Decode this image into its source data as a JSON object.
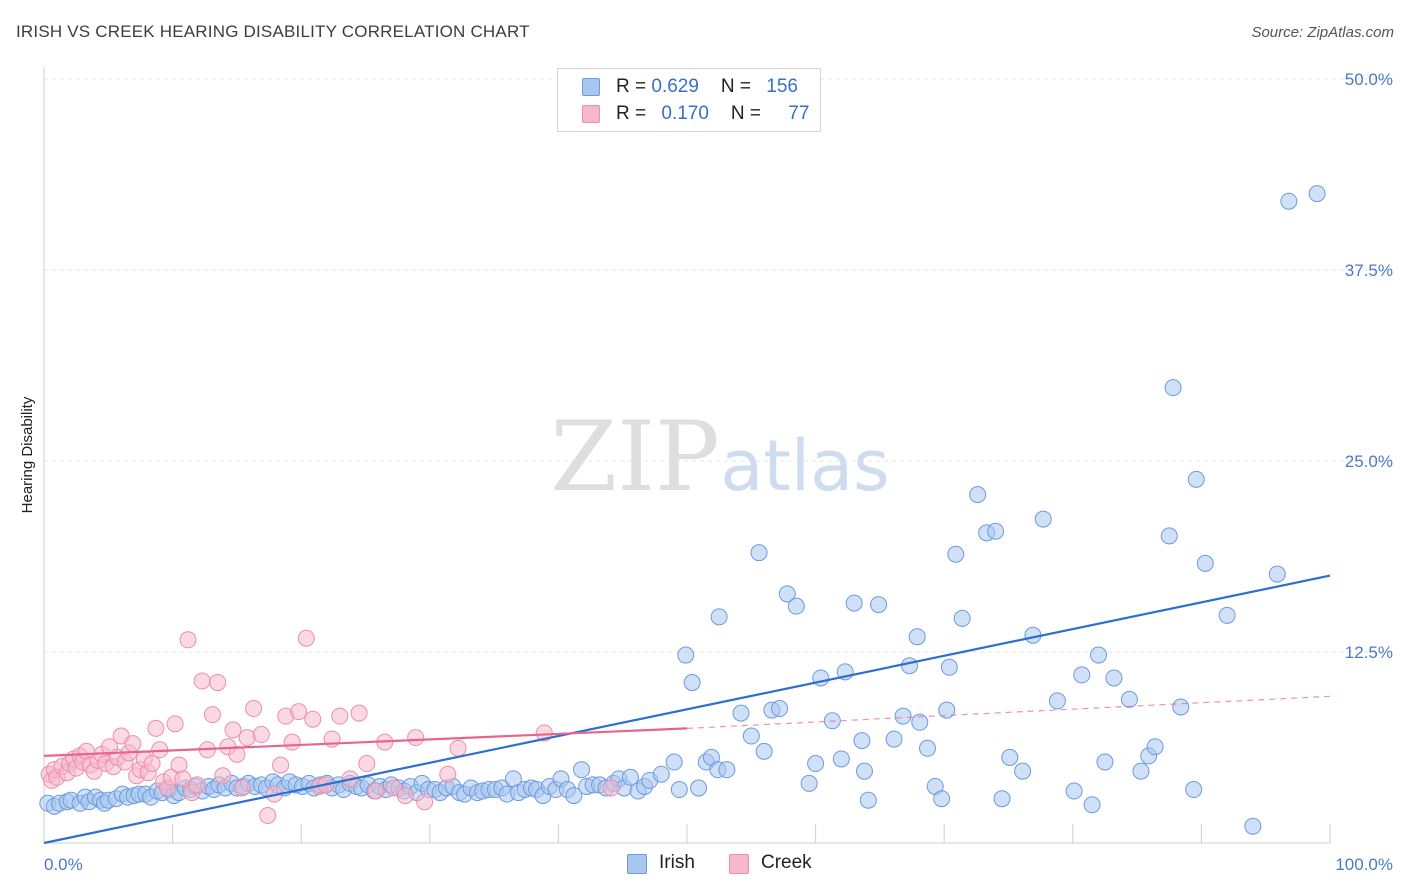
{
  "header": {
    "title": "IRISH VS CREEK HEARING DISABILITY CORRELATION CHART",
    "source": "Source: ZipAtlas.com"
  },
  "watermark": {
    "zip": "ZIP",
    "atlas": "atlas"
  },
  "legend": {
    "rows": [
      {
        "r_label": "R = ",
        "r_value": "0.629",
        "n_label": "N = ",
        "n_value": "156"
      },
      {
        "r_label": "R = ",
        "r_value": "0.170",
        "n_label": "N = ",
        "n_value": "77"
      }
    ]
  },
  "colors": {
    "irish_fill": "#a9c6ef",
    "irish_stroke": "#6b9be0",
    "irish_line": "#2c6fd1",
    "creek_fill": "#f6b9cc",
    "creek_stroke": "#ec8eab",
    "creek_line": "#e8648f",
    "tick_color": "#4a79c8",
    "grid": "#e4e4e4"
  },
  "chart_data": {
    "type": "scatter",
    "title": "IRISH VS CREEK HEARING DISABILITY CORRELATION CHART",
    "xlabel": "",
    "ylabel": "Hearing Disability",
    "xlim": [
      0,
      100
    ],
    "ylim": [
      0,
      50
    ],
    "x_tick_labels": [
      "0.0%",
      "100.0%"
    ],
    "y_ticks": [
      12.5,
      25.0,
      37.5,
      50.0
    ],
    "y_tick_labels": [
      "12.5%",
      "25.0%",
      "37.5%",
      "50.0%"
    ],
    "grid": "horizontal dashed",
    "legend_position": "bottom-center",
    "series": [
      {
        "name": "Irish",
        "points": [
          [
            0.3,
            2.6
          ],
          [
            0.8,
            2.4
          ],
          [
            1.2,
            2.6
          ],
          [
            1.8,
            2.7
          ],
          [
            2.1,
            2.8
          ],
          [
            2.8,
            2.6
          ],
          [
            3.2,
            3.0
          ],
          [
            3.5,
            2.7
          ],
          [
            4.0,
            3.0
          ],
          [
            4.4,
            2.8
          ],
          [
            4.7,
            2.6
          ],
          [
            5.0,
            2.8
          ],
          [
            5.6,
            2.9
          ],
          [
            6.1,
            3.2
          ],
          [
            6.5,
            3.0
          ],
          [
            7.0,
            3.1
          ],
          [
            7.4,
            3.2
          ],
          [
            7.9,
            3.2
          ],
          [
            8.3,
            3.0
          ],
          [
            8.8,
            3.4
          ],
          [
            9.2,
            3.3
          ],
          [
            9.7,
            3.5
          ],
          [
            10.1,
            3.1
          ],
          [
            10.5,
            3.3
          ],
          [
            11.0,
            3.6
          ],
          [
            11.4,
            3.5
          ],
          [
            11.8,
            3.7
          ],
          [
            12.3,
            3.4
          ],
          [
            12.8,
            3.7
          ],
          [
            13.2,
            3.5
          ],
          [
            13.6,
            3.8
          ],
          [
            14.1,
            3.6
          ],
          [
            14.6,
            3.9
          ],
          [
            15.0,
            3.6
          ],
          [
            15.5,
            3.7
          ],
          [
            15.9,
            3.9
          ],
          [
            16.4,
            3.7
          ],
          [
            16.9,
            3.8
          ],
          [
            17.3,
            3.6
          ],
          [
            17.8,
            4.0
          ],
          [
            18.2,
            3.8
          ],
          [
            18.7,
            3.6
          ],
          [
            19.1,
            4.0
          ],
          [
            19.6,
            3.8
          ],
          [
            20.1,
            3.7
          ],
          [
            20.6,
            3.9
          ],
          [
            21.0,
            3.6
          ],
          [
            21.5,
            3.8
          ],
          [
            22.0,
            3.9
          ],
          [
            22.4,
            3.6
          ],
          [
            22.9,
            3.8
          ],
          [
            23.3,
            3.5
          ],
          [
            23.8,
            3.9
          ],
          [
            24.3,
            3.7
          ],
          [
            24.7,
            3.6
          ],
          [
            25.2,
            3.8
          ],
          [
            25.7,
            3.4
          ],
          [
            26.1,
            3.7
          ],
          [
            26.6,
            3.5
          ],
          [
            27.0,
            3.8
          ],
          [
            27.6,
            3.6
          ],
          [
            28.0,
            3.4
          ],
          [
            28.5,
            3.7
          ],
          [
            29.0,
            3.3
          ],
          [
            29.4,
            3.9
          ],
          [
            29.9,
            3.5
          ],
          [
            30.4,
            3.5
          ],
          [
            30.8,
            3.3
          ],
          [
            31.3,
            3.6
          ],
          [
            31.8,
            3.7
          ],
          [
            32.3,
            3.3
          ],
          [
            32.7,
            3.2
          ],
          [
            33.2,
            3.6
          ],
          [
            33.7,
            3.3
          ],
          [
            34.1,
            3.4
          ],
          [
            34.6,
            3.5
          ],
          [
            35.1,
            3.5
          ],
          [
            35.6,
            3.6
          ],
          [
            36.0,
            3.2
          ],
          [
            36.5,
            4.2
          ],
          [
            36.9,
            3.3
          ],
          [
            37.4,
            3.5
          ],
          [
            37.9,
            3.6
          ],
          [
            38.3,
            3.5
          ],
          [
            38.8,
            3.1
          ],
          [
            39.3,
            3.7
          ],
          [
            39.8,
            3.5
          ],
          [
            40.2,
            4.2
          ],
          [
            40.7,
            3.5
          ],
          [
            41.2,
            3.1
          ],
          [
            41.8,
            4.8
          ],
          [
            42.2,
            3.7
          ],
          [
            42.7,
            3.8
          ],
          [
            43.2,
            3.8
          ],
          [
            43.7,
            3.6
          ],
          [
            44.3,
            3.9
          ],
          [
            44.7,
            4.2
          ],
          [
            45.1,
            3.6
          ],
          [
            45.6,
            4.3
          ],
          [
            46.2,
            3.4
          ],
          [
            46.7,
            3.7
          ],
          [
            47.1,
            4.1
          ],
          [
            48.0,
            4.5
          ],
          [
            49.0,
            5.3
          ],
          [
            49.4,
            3.5
          ],
          [
            49.9,
            12.3
          ],
          [
            50.4,
            10.5
          ],
          [
            50.9,
            3.6
          ],
          [
            51.5,
            5.3
          ],
          [
            51.9,
            5.6
          ],
          [
            52.4,
            4.8
          ],
          [
            53.1,
            4.8
          ],
          [
            52.5,
            14.8
          ],
          [
            54.2,
            8.5
          ],
          [
            55.0,
            7.0
          ],
          [
            55.6,
            19.0
          ],
          [
            56.0,
            6.0
          ],
          [
            56.6,
            8.7
          ],
          [
            57.2,
            8.8
          ],
          [
            57.8,
            16.3
          ],
          [
            58.5,
            15.5
          ],
          [
            59.5,
            3.9
          ],
          [
            60.0,
            5.2
          ],
          [
            60.4,
            10.8
          ],
          [
            61.3,
            8.0
          ],
          [
            62.0,
            5.5
          ],
          [
            62.3,
            11.2
          ],
          [
            63.0,
            15.7
          ],
          [
            63.6,
            6.7
          ],
          [
            63.8,
            4.7
          ],
          [
            64.1,
            2.8
          ],
          [
            64.9,
            15.6
          ],
          [
            66.1,
            6.8
          ],
          [
            66.8,
            8.3
          ],
          [
            67.3,
            11.6
          ],
          [
            67.9,
            13.5
          ],
          [
            68.1,
            7.9
          ],
          [
            68.7,
            6.2
          ],
          [
            69.3,
            3.7
          ],
          [
            69.8,
            2.9
          ],
          [
            70.2,
            8.7
          ],
          [
            70.4,
            11.5
          ],
          [
            70.9,
            18.9
          ],
          [
            71.4,
            14.7
          ],
          [
            72.6,
            22.8
          ],
          [
            73.3,
            20.3
          ],
          [
            74.0,
            20.4
          ],
          [
            74.5,
            2.9
          ],
          [
            75.1,
            5.6
          ],
          [
            76.1,
            4.7
          ],
          [
            76.9,
            13.6
          ],
          [
            77.7,
            21.2
          ],
          [
            78.8,
            9.3
          ],
          [
            80.1,
            3.4
          ],
          [
            80.7,
            11.0
          ],
          [
            81.5,
            2.5
          ],
          [
            82.0,
            12.3
          ],
          [
            82.5,
            5.3
          ],
          [
            83.2,
            10.8
          ],
          [
            84.4,
            9.4
          ],
          [
            85.3,
            4.7
          ],
          [
            85.9,
            5.7
          ],
          [
            86.4,
            6.3
          ],
          [
            87.5,
            20.1
          ],
          [
            87.8,
            29.8
          ],
          [
            88.4,
            8.9
          ],
          [
            89.4,
            3.5
          ],
          [
            89.6,
            23.8
          ],
          [
            90.3,
            18.3
          ],
          [
            92.0,
            14.9
          ],
          [
            94.0,
            1.1
          ],
          [
            95.9,
            17.6
          ],
          [
            96.8,
            42.0
          ],
          [
            99.0,
            42.5
          ]
        ],
        "trend": {
          "x": [
            0,
            100
          ],
          "y": [
            0.0,
            17.5
          ]
        }
      },
      {
        "name": "Creek",
        "points": [
          [
            0.4,
            4.5
          ],
          [
            0.6,
            4.1
          ],
          [
            0.8,
            4.8
          ],
          [
            1.0,
            4.3
          ],
          [
            1.4,
            5.0
          ],
          [
            1.8,
            4.6
          ],
          [
            2.0,
            5.2
          ],
          [
            2.3,
            5.5
          ],
          [
            2.5,
            4.9
          ],
          [
            2.8,
            5.7
          ],
          [
            3.0,
            5.3
          ],
          [
            3.3,
            6.0
          ],
          [
            3.6,
            5.1
          ],
          [
            3.9,
            4.7
          ],
          [
            4.2,
            5.4
          ],
          [
            4.5,
            5.8
          ],
          [
            4.8,
            5.2
          ],
          [
            5.1,
            6.3
          ],
          [
            5.4,
            5.0
          ],
          [
            5.7,
            5.6
          ],
          [
            6.0,
            7.0
          ],
          [
            6.3,
            5.3
          ],
          [
            6.6,
            5.9
          ],
          [
            6.9,
            6.5
          ],
          [
            7.2,
            4.4
          ],
          [
            7.5,
            4.8
          ],
          [
            7.8,
            5.5
          ],
          [
            8.1,
            4.6
          ],
          [
            8.4,
            5.2
          ],
          [
            8.7,
            7.5
          ],
          [
            9.0,
            6.1
          ],
          [
            9.3,
            4.0
          ],
          [
            9.6,
            3.6
          ],
          [
            9.9,
            4.3
          ],
          [
            10.2,
            7.8
          ],
          [
            10.5,
            5.1
          ],
          [
            10.8,
            4.2
          ],
          [
            11.2,
            13.3
          ],
          [
            11.5,
            3.3
          ],
          [
            11.9,
            3.8
          ],
          [
            12.3,
            10.6
          ],
          [
            12.7,
            6.1
          ],
          [
            13.1,
            8.4
          ],
          [
            13.5,
            10.5
          ],
          [
            13.9,
            4.4
          ],
          [
            14.3,
            6.3
          ],
          [
            14.7,
            7.4
          ],
          [
            15.0,
            5.8
          ],
          [
            15.4,
            3.6
          ],
          [
            15.8,
            6.9
          ],
          [
            16.3,
            8.8
          ],
          [
            16.9,
            7.1
          ],
          [
            17.4,
            1.8
          ],
          [
            17.9,
            3.2
          ],
          [
            18.4,
            5.1
          ],
          [
            18.8,
            8.3
          ],
          [
            19.3,
            6.6
          ],
          [
            19.8,
            8.6
          ],
          [
            20.4,
            13.4
          ],
          [
            20.9,
            8.1
          ],
          [
            21.4,
            3.7
          ],
          [
            21.9,
            3.8
          ],
          [
            22.4,
            6.8
          ],
          [
            23.0,
            8.3
          ],
          [
            23.8,
            4.2
          ],
          [
            24.5,
            8.5
          ],
          [
            25.1,
            5.2
          ],
          [
            25.8,
            3.4
          ],
          [
            26.5,
            6.6
          ],
          [
            27.2,
            3.6
          ],
          [
            28.1,
            3.1
          ],
          [
            28.9,
            6.9
          ],
          [
            29.6,
            2.7
          ],
          [
            31.4,
            4.5
          ],
          [
            32.2,
            6.2
          ],
          [
            38.9,
            7.2
          ],
          [
            44.1,
            3.6
          ]
        ],
        "trend_solid": {
          "x": [
            0,
            50
          ],
          "y": [
            5.7,
            7.5
          ]
        },
        "trend_dashed": {
          "x": [
            50,
            100
          ],
          "y": [
            7.5,
            9.6
          ]
        }
      }
    ]
  }
}
